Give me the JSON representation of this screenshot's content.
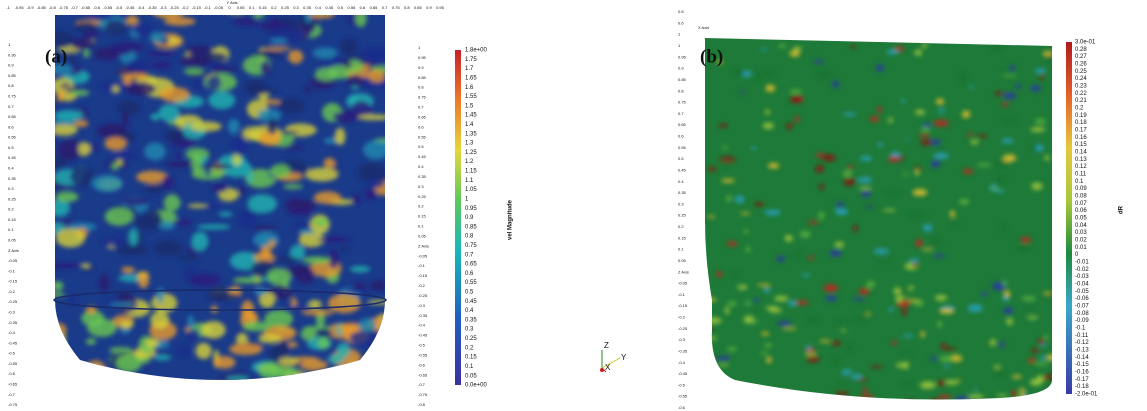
{
  "panel_a": {
    "label": "(a)",
    "colorbar_title": "vel Magnitude",
    "colorbar_ticks": [
      "1.8e+00",
      "1.75",
      "1.7",
      "1.65",
      "1.6",
      "1.55",
      "1.5",
      "1.45",
      "1.4",
      "1.35",
      "1.3",
      "1.25",
      "1.2",
      "1.15",
      "1.1",
      "1.05",
      "1",
      "0.95",
      "0.9",
      "0.85",
      "0.8",
      "0.75",
      "0.7",
      "0.65",
      "0.6",
      "0.55",
      "0.5",
      "0.45",
      "0.4",
      "0.35",
      "0.3",
      "0.25",
      "0.2",
      "0.15",
      "0.1",
      "0.05",
      "0.0e+00"
    ],
    "left_axis_ticks": [
      "1",
      "0.95",
      "0.9",
      "0.85",
      "0.8",
      "0.75",
      "0.7",
      "0.65",
      "0.6",
      "0.55",
      "0.5",
      "0.45",
      "0.4",
      "0.35",
      "0.3",
      "0.25",
      "0.2",
      "0.15",
      "0.1",
      "0.05",
      "Z Axis",
      "-0.05",
      "-0.1",
      "-0.15",
      "-0.2",
      "-0.25",
      "-0.3",
      "-0.35",
      "-0.4",
      "-0.45",
      "-0.5",
      "-0.55",
      "-0.6",
      "-0.65",
      "-0.7",
      "-0.75"
    ],
    "right_axis_ticks": [
      "1",
      "0.95",
      "0.9",
      "0.85",
      "0.8",
      "0.75",
      "0.7",
      "0.65",
      "0.6",
      "0.55",
      "0.5",
      "0.45",
      "0.4",
      "0.35",
      "0.3",
      "0.25",
      "0.2",
      "0.15",
      "0.1",
      "0.05",
      "Z Axis",
      "-0.05",
      "-0.1",
      "-0.15",
      "-0.2",
      "-0.25",
      "-0.3",
      "-0.35",
      "-0.4",
      "-0.45",
      "-0.5",
      "-0.55",
      "-0.6",
      "-0.65",
      "-0.7",
      "-0.75",
      "-0.8"
    ],
    "top_axis_ticks": [
      "-1",
      "-0.95",
      "-0.9",
      "-0.85",
      "-0.8",
      "-0.75",
      "-0.7",
      "-0.65",
      "-0.6",
      "-0.55",
      "-0.5",
      "-0.45",
      "-0.4",
      "-0.35",
      "-0.3",
      "-0.25",
      "-0.2",
      "-0.15",
      "-0.1",
      "-0.05",
      "0",
      "0.05",
      "0.1",
      "0.15",
      "0.2",
      "0.25",
      "0.3",
      "0.35",
      "0.4",
      "0.45",
      "0.5",
      "0.55",
      "0.6",
      "0.65",
      "0.7",
      "0.75",
      "0.8",
      "0.85",
      "0.9",
      "0.95"
    ],
    "top_axis_title": "Y Axis"
  },
  "panel_b": {
    "label": "(b)",
    "colorbar_title": "dR",
    "colorbar_ticks": [
      "3.0e-01",
      "0.28",
      "0.27",
      "0.26",
      "0.25",
      "0.24",
      "0.23",
      "0.22",
      "0.21",
      "0.2",
      "0.19",
      "0.18",
      "0.17",
      "0.16",
      "0.15",
      "0.14",
      "0.13",
      "0.12",
      "0.11",
      "0.1",
      "0.09",
      "0.08",
      "0.07",
      "0.06",
      "0.05",
      "0.04",
      "0.03",
      "0.02",
      "0.01",
      "0",
      "-0.01",
      "-0.02",
      "-0.03",
      "-0.04",
      "-0.05",
      "-0.06",
      "-0.07",
      "-0.08",
      "-0.09",
      "-0.1",
      "-0.11",
      "-0.12",
      "-0.13",
      "-0.14",
      "-0.15",
      "-0.16",
      "-0.17",
      "-0.18",
      "-2.0e-01"
    ],
    "left_axis_ticks": [
      "0.8",
      "0.6",
      "1",
      "1",
      "0.95",
      "0.9",
      "0.85",
      "0.8",
      "0.75",
      "0.7",
      "0.65",
      "0.6",
      "0.55",
      "0.5",
      "0.45",
      "0.4",
      "0.35",
      "0.3",
      "0.25",
      "0.2",
      "0.15",
      "0.1",
      "0.05",
      "Z Axis",
      "-0.05",
      "-0.1",
      "-0.15",
      "-0.2",
      "-0.25",
      "-0.3",
      "-0.35",
      "-0.4",
      "-0.45",
      "-0.5",
      "-0.55",
      "-0.6"
    ],
    "x_axis_title": "X Axis"
  },
  "triad": {
    "z": "Z",
    "y": "Y",
    "x": "X"
  }
}
